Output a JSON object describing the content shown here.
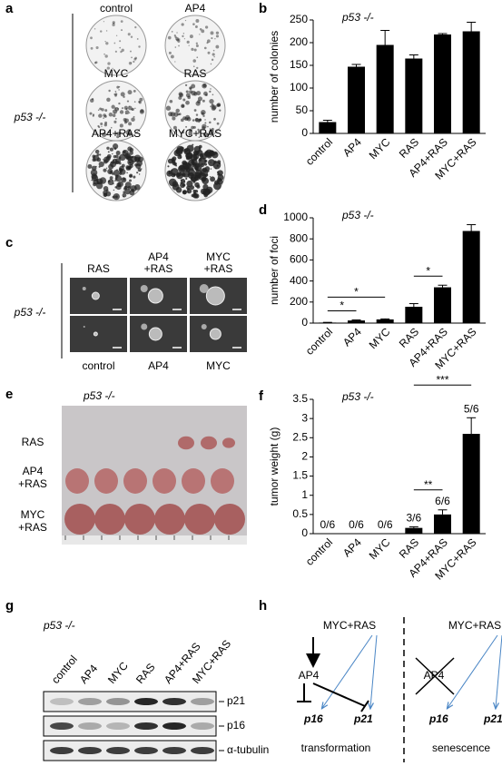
{
  "panels": {
    "a": {
      "label": "a",
      "genotype": "p53 -/-",
      "plates": [
        "control",
        "AP4",
        "MYC",
        "RAS",
        "AP4+RAS",
        "MYC+RAS"
      ]
    },
    "c": {
      "label": "c",
      "genotype": "p53 -/-",
      "top": [
        [
          "RAS"
        ],
        [
          "AP4",
          "+RAS"
        ],
        [
          "MYC",
          "+RAS"
        ]
      ],
      "bottom": [
        "control",
        "AP4",
        "MYC"
      ]
    },
    "e": {
      "label": "e",
      "genotype": "p53 -/-",
      "rows": [
        [
          "RAS"
        ],
        [
          "AP4",
          "+RAS"
        ],
        [
          "MYC",
          "+RAS"
        ]
      ]
    },
    "g": {
      "label": "g",
      "genotype": "p53 -/-",
      "lanes": [
        "control",
        "AP4",
        "MYC",
        "RAS",
        "AP4+RAS",
        "MYC+RAS"
      ],
      "bands": [
        "p21",
        "p16",
        "α-tubulin"
      ]
    },
    "h": {
      "label": "h",
      "left": {
        "source": "MYC+RAS",
        "mediator": "AP4",
        "targets": [
          "p16",
          "p21"
        ],
        "caption": "transformation"
      },
      "right": {
        "source": "MYC+RAS",
        "mediator": "AP4",
        "targets": [
          "p16",
          "p21"
        ],
        "caption": "senescence"
      }
    }
  },
  "chart_data": [
    {
      "type": "bar",
      "panel_label": "b",
      "annotation": "p53 -/-",
      "ylabel": "number of colonies",
      "categories": [
        "control",
        "AP4",
        "MYC",
        "RAS",
        "AP4+RAS",
        "MYC+RAS"
      ],
      "values": [
        25,
        147,
        195,
        165,
        218,
        225
      ],
      "errors": [
        4,
        5,
        32,
        8,
        2,
        20
      ],
      "color": "#000000",
      "ylim": [
        0,
        250
      ],
      "yticks": [
        0,
        50,
        100,
        150,
        200,
        250
      ]
    },
    {
      "type": "bar",
      "panel_label": "d",
      "annotation": "p53 -/-",
      "ylabel": "number of foci",
      "categories": [
        "control",
        "AP4",
        "MYC",
        "RAS",
        "AP4+RAS",
        "MYC+RAS"
      ],
      "values": [
        5,
        25,
        35,
        155,
        340,
        875
      ],
      "errors": [
        2,
        5,
        5,
        30,
        20,
        60
      ],
      "color": "#000000",
      "ylim": [
        0,
        1000
      ],
      "yticks": [
        0,
        200,
        400,
        600,
        800,
        1000
      ],
      "significance": [
        {
          "label": "*",
          "from": 0,
          "to": 1
        },
        {
          "label": "*",
          "from": 0,
          "to": 2
        },
        {
          "label": "*",
          "from": 3,
          "to": 4
        }
      ]
    },
    {
      "type": "bar",
      "panel_label": "f",
      "annotation": "p53 -/-",
      "ylabel": "tumor weight (g)",
      "categories": [
        "control",
        "AP4",
        "MYC",
        "RAS",
        "AP4+RAS",
        "MYC+RAS"
      ],
      "values": [
        0,
        0,
        0,
        0.15,
        0.5,
        2.6
      ],
      "errors": [
        0,
        0,
        0,
        0.03,
        0.12,
        0.42
      ],
      "incidence": [
        "0/6",
        "0/6",
        "0/6",
        "3/6",
        "6/6",
        "5/6"
      ],
      "color": "#000000",
      "ylim": [
        0,
        3.5
      ],
      "yticks": [
        0,
        0.5,
        1,
        1.5,
        2,
        2.5,
        3,
        3.5
      ],
      "significance": [
        {
          "label": "**",
          "from": 3,
          "to": 4
        },
        {
          "label": "***",
          "from": 3,
          "to": 5
        }
      ]
    }
  ]
}
